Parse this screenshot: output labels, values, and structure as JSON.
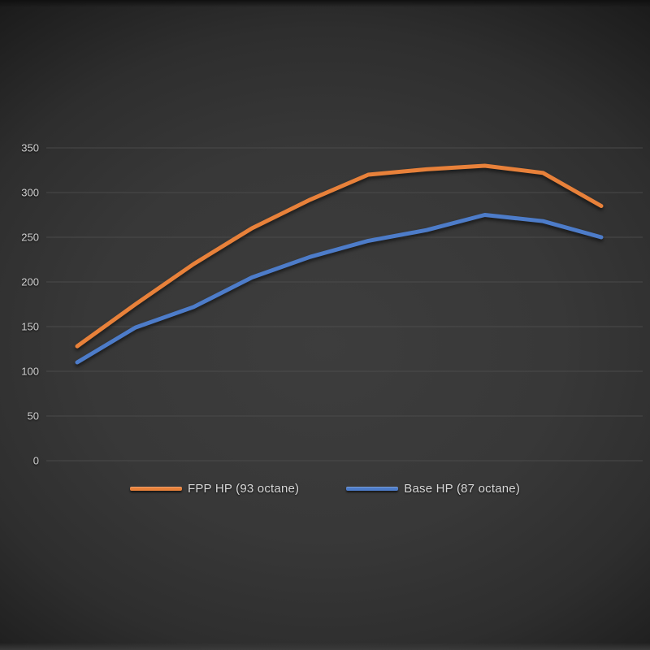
{
  "chart_data": {
    "type": "line",
    "title": "",
    "xlabel": "",
    "ylabel": "",
    "x_axis": {
      "tick_labels_visible": false,
      "num_points": 10
    },
    "y_axis": {
      "min": 0,
      "max": 350,
      "tick_step": 50,
      "ticks": [
        350,
        300,
        250,
        200,
        150,
        100,
        50,
        0
      ]
    },
    "grid": "horizontal-only",
    "gridline_color": "#4e4e4e",
    "tick_label_color": "#d2d2d2",
    "background_style": "dark-vignette",
    "legend_position": "bottom-center",
    "series": [
      {
        "name": "FPP HP (93 octane)",
        "color": "#e8813a",
        "values": [
          128,
          175,
          220,
          260,
          292,
          320,
          326,
          330,
          322,
          285
        ]
      },
      {
        "name": "Base HP (87 octane)",
        "color": "#4d7cc9",
        "values": [
          110,
          149,
          172,
          205,
          228,
          246,
          258,
          275,
          268,
          250
        ]
      }
    ]
  },
  "legend": {
    "items": [
      {
        "label": "FPP HP (93 octane)",
        "color": "#e8813a",
        "swatch": "line"
      },
      {
        "label": "Base HP (87 octane)",
        "color": "#4d7cc9",
        "swatch": "line"
      }
    ]
  }
}
